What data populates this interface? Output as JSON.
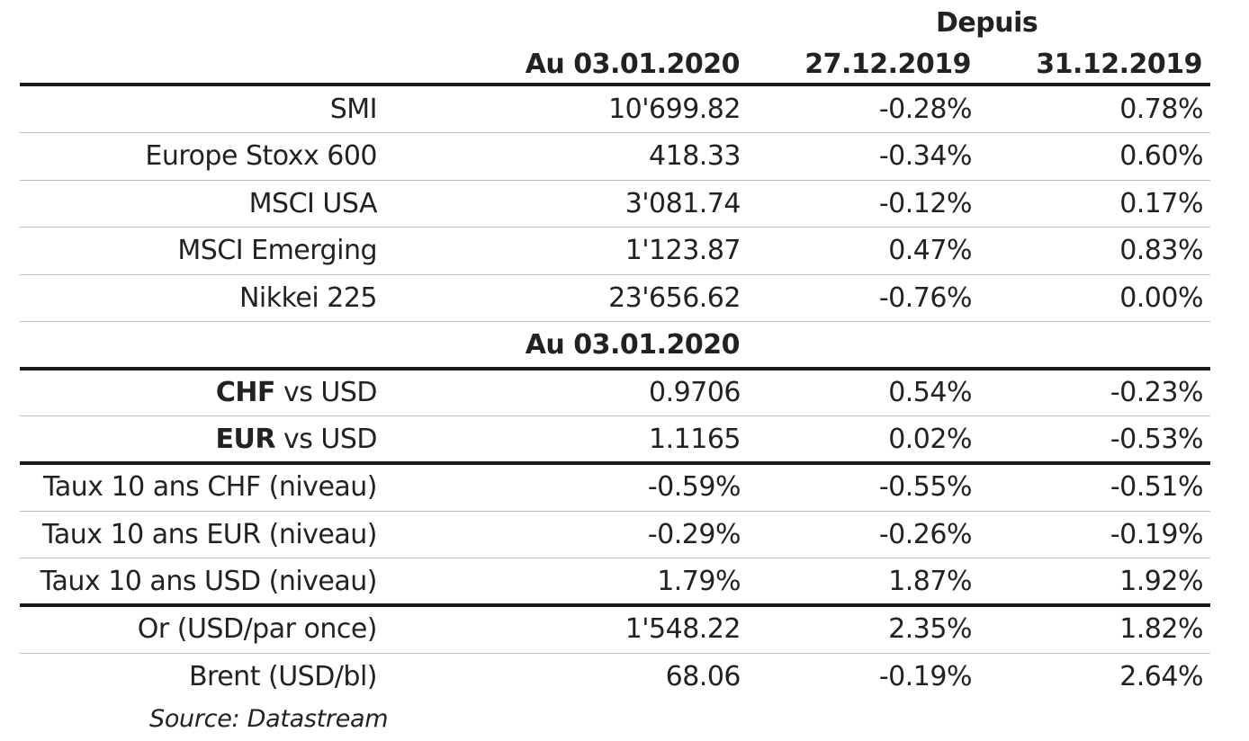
{
  "header": {
    "depuis": "Depuis",
    "col_value": "Au 03.01.2020",
    "col_since_1": "27.12.2019",
    "col_since_2": "31.12.2019"
  },
  "indices": [
    {
      "label": "SMI",
      "value": "10'699.82",
      "d1": "-0.28%",
      "d2": "0.78%"
    },
    {
      "label": "Europe Stoxx 600",
      "value": "418.33",
      "d1": "-0.34%",
      "d2": "0.60%"
    },
    {
      "label": "MSCI USA",
      "value": "3'081.74",
      "d1": "-0.12%",
      "d2": "0.17%"
    },
    {
      "label": "MSCI Emerging",
      "value": "1'123.87",
      "d1": "0.47%",
      "d2": "0.83%"
    },
    {
      "label": "Nikkei 225",
      "value": "23'656.62",
      "d1": "-0.76%",
      "d2": "0.00%"
    }
  ],
  "sub_header": "Au 03.01.2020",
  "fx": [
    {
      "label_bold": "CHF",
      "label_rest": " vs USD",
      "value": "0.9706",
      "d1": "0.54%",
      "d2": "-0.23%"
    },
    {
      "label_bold": "EUR",
      "label_rest": " vs USD",
      "value": "1.1165",
      "d1": "0.02%",
      "d2": "-0.53%"
    }
  ],
  "rates": [
    {
      "label": "Taux 10 ans CHF (niveau)",
      "value": "-0.59%",
      "d1": "-0.55%",
      "d2": "-0.51%"
    },
    {
      "label": "Taux 10 ans EUR (niveau)",
      "value": "-0.29%",
      "d1": "-0.26%",
      "d2": "-0.19%"
    },
    {
      "label": "Taux 10 ans USD (niveau)",
      "value": "1.79%",
      "d1": "1.87%",
      "d2": "1.92%"
    }
  ],
  "commodities": [
    {
      "label": "Or (USD/par once)",
      "value": "1'548.22",
      "d1": "2.35%",
      "d2": "1.82%"
    },
    {
      "label": "Brent (USD/bl)",
      "value": "68.06",
      "d1": "-0.19%",
      "d2": "2.64%"
    }
  ],
  "source": "Source: Datastream"
}
